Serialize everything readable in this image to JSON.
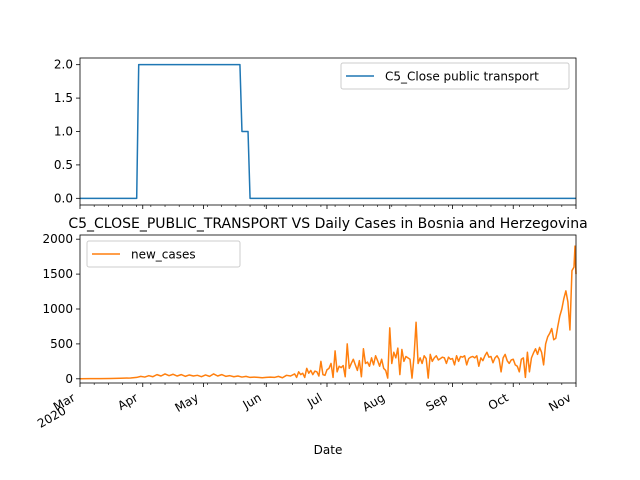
{
  "chart_data": [
    {
      "type": "line",
      "title": "",
      "xlabel": "",
      "ylabel": "",
      "ylim": [
        -0.1,
        2.1
      ],
      "yticks": [
        "0.0",
        "0.5",
        "1.0",
        "1.5",
        "2.0"
      ],
      "ytick_values": [
        0,
        0.5,
        1.0,
        1.5,
        2.0
      ],
      "x_range_days": [
        0,
        245
      ],
      "grid": false,
      "legend": "upper right",
      "series": [
        {
          "name": "C5_Close public transport",
          "color": "#1f77b4",
          "points": [
            [
              0,
              0
            ],
            [
              28,
              0
            ],
            [
              29,
              2
            ],
            [
              79,
              2
            ],
            [
              80,
              1
            ],
            [
              83,
              1
            ],
            [
              84,
              0
            ],
            [
              245,
              0
            ]
          ]
        }
      ]
    },
    {
      "type": "line",
      "title": "C5_CLOSE_PUBLIC_TRANSPORT VS Daily Cases in Bosnia and Herzegovina",
      "xlabel": "Date",
      "ylabel": "",
      "ylim": [
        -60,
        2060
      ],
      "yticks": [
        "0",
        "500",
        "1000",
        "1500",
        "2000"
      ],
      "ytick_values": [
        0,
        500,
        1000,
        1500,
        2000
      ],
      "x_range_days": [
        0,
        245
      ],
      "x_tick_labels": [
        "Mar\n2020",
        "Apr",
        "May",
        "Jun",
        "Jul",
        "Aug",
        "Sep",
        "Oct",
        "Nov"
      ],
      "x_tick_days": [
        0,
        31,
        61,
        92,
        122,
        153,
        184,
        214,
        245
      ],
      "grid": false,
      "legend": "upper left",
      "series": [
        {
          "name": "new_cases",
          "color": "#ff7f0e",
          "points": [
            [
              0,
              0
            ],
            [
              5,
              2
            ],
            [
              10,
              3
            ],
            [
              15,
              5
            ],
            [
              20,
              8
            ],
            [
              25,
              12
            ],
            [
              28,
              20
            ],
            [
              30,
              35
            ],
            [
              32,
              25
            ],
            [
              34,
              45
            ],
            [
              36,
              30
            ],
            [
              38,
              60
            ],
            [
              40,
              40
            ],
            [
              42,
              70
            ],
            [
              44,
              45
            ],
            [
              46,
              65
            ],
            [
              48,
              40
            ],
            [
              50,
              60
            ],
            [
              52,
              35
            ],
            [
              54,
              55
            ],
            [
              56,
              40
            ],
            [
              58,
              50
            ],
            [
              60,
              30
            ],
            [
              62,
              55
            ],
            [
              64,
              35
            ],
            [
              66,
              70
            ],
            [
              68,
              40
            ],
            [
              70,
              60
            ],
            [
              72,
              35
            ],
            [
              74,
              45
            ],
            [
              76,
              30
            ],
            [
              78,
              40
            ],
            [
              80,
              25
            ],
            [
              82,
              35
            ],
            [
              84,
              20
            ],
            [
              86,
              25
            ],
            [
              88,
              20
            ],
            [
              90,
              15
            ],
            [
              92,
              20
            ],
            [
              94,
              25
            ],
            [
              96,
              20
            ],
            [
              98,
              35
            ],
            [
              100,
              15
            ],
            [
              102,
              50
            ],
            [
              104,
              40
            ],
            [
              106,
              70
            ],
            [
              107,
              20
            ],
            [
              108,
              100
            ],
            [
              109,
              60
            ],
            [
              110,
              80
            ],
            [
              111,
              20
            ],
            [
              112,
              150
            ],
            [
              113,
              80
            ],
            [
              114,
              120
            ],
            [
              115,
              60
            ],
            [
              116,
              110
            ],
            [
              117,
              100
            ],
            [
              118,
              40
            ],
            [
              119,
              250
            ],
            [
              120,
              60
            ],
            [
              121,
              50
            ],
            [
              122,
              130
            ],
            [
              123,
              150
            ],
            [
              124,
              220
            ],
            [
              125,
              20
            ],
            [
              126,
              400
            ],
            [
              127,
              100
            ],
            [
              128,
              180
            ],
            [
              129,
              160
            ],
            [
              130,
              190
            ],
            [
              131,
              30
            ],
            [
              132,
              500
            ],
            [
              133,
              150
            ],
            [
              134,
              220
            ],
            [
              135,
              280
            ],
            [
              136,
              200
            ],
            [
              137,
              120
            ],
            [
              138,
              260
            ],
            [
              139,
              30
            ],
            [
              140,
              430
            ],
            [
              141,
              220
            ],
            [
              142,
              240
            ],
            [
              143,
              180
            ],
            [
              144,
              300
            ],
            [
              145,
              200
            ],
            [
              146,
              330
            ],
            [
              147,
              260
            ],
            [
              148,
              180
            ],
            [
              149,
              280
            ],
            [
              150,
              150
            ],
            [
              151,
              120
            ],
            [
              152,
              10
            ],
            [
              153,
              730
            ],
            [
              154,
              220
            ],
            [
              155,
              380
            ],
            [
              156,
              300
            ],
            [
              157,
              440
            ],
            [
              158,
              60
            ],
            [
              159,
              420
            ],
            [
              160,
              250
            ],
            [
              161,
              320
            ],
            [
              162,
              300
            ],
            [
              163,
              280
            ],
            [
              164,
              10
            ],
            [
              165,
              320
            ],
            [
              166,
              810
            ],
            [
              167,
              220
            ],
            [
              168,
              300
            ],
            [
              169,
              220
            ],
            [
              170,
              330
            ],
            [
              171,
              290
            ],
            [
              172,
              10
            ],
            [
              173,
              350
            ],
            [
              174,
              250
            ],
            [
              175,
              300
            ],
            [
              176,
              330
            ],
            [
              177,
              270
            ],
            [
              178,
              290
            ],
            [
              179,
              310
            ],
            [
              180,
              300
            ],
            [
              181,
              220
            ],
            [
              182,
              310
            ],
            [
              183,
              280
            ],
            [
              184,
              290
            ],
            [
              185,
              200
            ],
            [
              186,
              330
            ],
            [
              187,
              250
            ],
            [
              188,
              320
            ],
            [
              189,
              310
            ],
            [
              190,
              330
            ],
            [
              191,
              200
            ],
            [
              192,
              290
            ],
            [
              193,
              310
            ],
            [
              194,
              320
            ],
            [
              195,
              300
            ],
            [
              196,
              330
            ],
            [
              197,
              180
            ],
            [
              198,
              300
            ],
            [
              199,
              260
            ],
            [
              200,
              330
            ],
            [
              201,
              380
            ],
            [
              202,
              310
            ],
            [
              203,
              320
            ],
            [
              204,
              230
            ],
            [
              205,
              300
            ],
            [
              206,
              330
            ],
            [
              207,
              280
            ],
            [
              208,
              100
            ],
            [
              209,
              300
            ],
            [
              210,
              350
            ],
            [
              211,
              260
            ],
            [
              212,
              220
            ],
            [
              213,
              270
            ],
            [
              214,
              280
            ],
            [
              215,
              200
            ],
            [
              216,
              180
            ],
            [
              217,
              100
            ],
            [
              218,
              280
            ],
            [
              219,
              300
            ],
            [
              220,
              20
            ],
            [
              221,
              380
            ],
            [
              222,
              100
            ],
            [
              223,
              300
            ],
            [
              224,
              370
            ],
            [
              225,
              430
            ],
            [
              226,
              350
            ],
            [
              227,
              450
            ],
            [
              228,
              380
            ],
            [
              229,
              200
            ],
            [
              230,
              500
            ],
            [
              231,
              600
            ],
            [
              232,
              650
            ],
            [
              233,
              720
            ],
            [
              234,
              560
            ],
            [
              235,
              580
            ],
            [
              236,
              750
            ],
            [
              237,
              900
            ],
            [
              238,
              1000
            ],
            [
              239,
              1150
            ],
            [
              240,
              1260
            ],
            [
              241,
              1100
            ],
            [
              242,
              700
            ],
            [
              243,
              1550
            ],
            [
              244,
              1600
            ],
            [
              244.5,
              1900
            ],
            [
              245,
              1500
            ]
          ]
        }
      ]
    }
  ]
}
